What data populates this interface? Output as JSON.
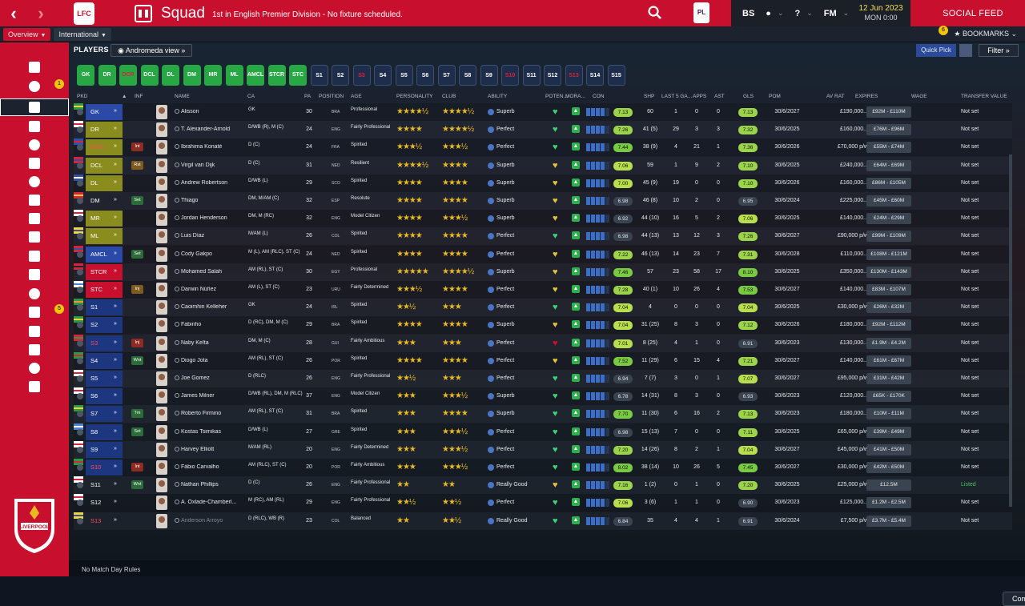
{
  "topbar": {
    "title": "Squad",
    "subtitle": "1st in English Premier Division - No fixture scheduled.",
    "date_line1": "12 Jun 2023",
    "date_line2": "MON 0:00",
    "social_feed": "SOCIAL FEED",
    "icons": [
      "back-icon",
      "forward-icon",
      "search-icon",
      "premier-league-logo",
      "bs-icon",
      "globe-icon",
      "help-icon",
      "fm-icon"
    ],
    "bs_label": "BS",
    "fm_label": "FM"
  },
  "subbar": {
    "tabs": [
      {
        "label": "Overview",
        "active": true
      },
      {
        "label": "International",
        "active": false
      }
    ],
    "bookmarks": "BOOKMARKS",
    "bookmarks_count": "6"
  },
  "sidebar": {
    "badges": {
      "messages": "1",
      "scouting": "5"
    }
  },
  "main": {
    "section_title": "PLAYERS",
    "view": "Andromeda view",
    "quick_pick": "Quick Pick",
    "filter": "Filter"
  },
  "shirts": [
    {
      "label": "GK",
      "type": "starter"
    },
    {
      "label": "DR",
      "type": "starter"
    },
    {
      "label": "DCR",
      "type": "starter",
      "red": true
    },
    {
      "label": "DCL",
      "type": "starter"
    },
    {
      "label": "DL",
      "type": "starter"
    },
    {
      "label": "DM",
      "type": "starter"
    },
    {
      "label": "MR",
      "type": "starter"
    },
    {
      "label": "ML",
      "type": "starter"
    },
    {
      "label": "AMCL",
      "type": "starter"
    },
    {
      "label": "STCR",
      "type": "starter"
    },
    {
      "label": "STC",
      "type": "starter"
    },
    {
      "label": "S1",
      "type": "sub"
    },
    {
      "label": "S2",
      "type": "sub"
    },
    {
      "label": "S3",
      "type": "sub",
      "red": true
    },
    {
      "label": "S4",
      "type": "sub"
    },
    {
      "label": "S5",
      "type": "sub"
    },
    {
      "label": "S6",
      "type": "sub"
    },
    {
      "label": "S7",
      "type": "sub"
    },
    {
      "label": "S8",
      "type": "sub"
    },
    {
      "label": "S9",
      "type": "sub"
    },
    {
      "label": "S10",
      "type": "sub",
      "red": true
    },
    {
      "label": "S11",
      "type": "sub"
    },
    {
      "label": "S12",
      "type": "sub"
    },
    {
      "label": "S13",
      "type": "sub",
      "red": true
    },
    {
      "label": "S14",
      "type": "sub"
    },
    {
      "label": "S15",
      "type": "sub"
    }
  ],
  "columns": {
    "pkd": "PKD",
    "inf": "INF",
    "name": "NAME",
    "ca": "CA",
    "pa": "PA",
    "position": "POSITION",
    "age": "AGE",
    "personality": "PERSONALITY",
    "club": "CLUB",
    "ability": "ABILITY",
    "potential": "POTEN...",
    "morale": "MORA...",
    "con": "CON",
    "shp": "SHP",
    "last5": "LAST 5 GA...",
    "apps": "APPS",
    "ast": "AST",
    "gls": "GLS",
    "pom": "POM",
    "avrat": "AV RAT",
    "expires": "EXPIRES",
    "wage": "WAGE",
    "transfer_value": "TRANSFER VALUE"
  },
  "rows": [
    {
      "pos": "GK",
      "posbg": "#2b4aa8",
      "inf": "",
      "name": "Alisson",
      "pos_text": "GK",
      "age": "30",
      "nat": "BRA",
      "flag": "bra",
      "pers": "Professional",
      "s1": "★★★★½",
      "s2": "★★★★½",
      "ability": "Superb",
      "heart": "#3fd17a",
      "con": [
        1,
        1,
        1,
        1,
        0
      ],
      "cab": "7.13",
      "ship": "60",
      "lga": "1",
      "apps": "0",
      "gls": "0",
      "ast": "7.13",
      "exp": "30/6/2027",
      "wage": "£190,000...",
      "val": "£92M - £110M",
      "tv": "Not set"
    },
    {
      "pos": "DR",
      "posbg": "#8b8c1e",
      "inf": "",
      "name": "T. Alexander-Arnold",
      "pos_text": "D/WB (R), M (C)",
      "age": "24",
      "nat": "ENG",
      "flag": "eng",
      "pers": "Fairly Professional",
      "s1": "★★★★",
      "s2": "★★★★½",
      "ability": "Perfect",
      "heart": "#3fd17a",
      "con": [
        1,
        1,
        1,
        1,
        0
      ],
      "cab": "7.26",
      "ship": "41 (5)",
      "lga": "29",
      "apps": "3",
      "gls": "3",
      "ast": "7.32",
      "exp": "30/6/2025",
      "wage": "£160,000...",
      "val": "£76M - £96M",
      "tv": "Not set"
    },
    {
      "pos": "DCR",
      "posbg": "#8b8c1e",
      "posred": true,
      "inf": "Int",
      "infbg": "#8e2b22",
      "name": "Ibrahima Konaté",
      "pos_text": "D (C)",
      "age": "24",
      "nat": "FRA",
      "flag": "fra",
      "pers": "Spirited",
      "s1": "★★★½",
      "s2": "★★★½",
      "ability": "Perfect",
      "heart": "#3fd17a",
      "con": [
        1,
        1,
        1,
        1,
        0
      ],
      "cab": "7.44",
      "ship": "38 (9)",
      "lga": "4",
      "apps": "21",
      "gls": "1",
      "ast": "7.36",
      "exp": "30/6/2026",
      "wage": "£70,000 p/w",
      "val": "£55M - £74M",
      "tv": "Not set"
    },
    {
      "pos": "DCL",
      "posbg": "#8b8c1e",
      "inf": "Rst",
      "infbg": "#7e5a1e",
      "name": "Virgil van Dijk",
      "pos_text": "D (C)",
      "age": "31",
      "nat": "NED",
      "flag": "ned",
      "pers": "Resilient",
      "s1": "★★★★½",
      "s2": "★★★★",
      "ability": "Superb",
      "heart": "#e3c33d",
      "con": [
        1,
        1,
        1,
        1,
        0
      ],
      "cab": "7.06",
      "ship": "59",
      "lga": "1",
      "apps": "9",
      "gls": "2",
      "ast": "7.10",
      "exp": "30/6/2025",
      "wage": "£240,000...",
      "val": "£64M - £69M",
      "tv": "Not set"
    },
    {
      "pos": "DL",
      "posbg": "#8b8c1e",
      "inf": "",
      "name": "Andrew Robertson",
      "pos_text": "D/WB (L)",
      "age": "29",
      "nat": "SCO",
      "flag": "sco",
      "pers": "Spirited",
      "s1": "★★★★",
      "s2": "★★★★",
      "ability": "Superb",
      "heart": "#e3c33d",
      "con": [
        1,
        1,
        1,
        1,
        0
      ],
      "cab": "7.00",
      "ship": "45 (9)",
      "lga": "19",
      "apps": "0",
      "gls": "0",
      "ast": "7.10",
      "exp": "30/6/2026",
      "wage": "£160,000...",
      "val": "£86M - £105M",
      "tv": "Not set"
    },
    {
      "pos": "DM",
      "posbg": "transparent",
      "inf": "Set",
      "infbg": "#2c6b3a",
      "name": "Thiago",
      "pos_text": "DM, M/AM (C)",
      "age": "32",
      "nat": "ESP",
      "flag": "esp",
      "pers": "Resolute",
      "s1": "★★★★",
      "s2": "★★★★",
      "ability": "Superb",
      "heart": "#e3c33d",
      "con": [
        1,
        1,
        1,
        1,
        0
      ],
      "cab": "6.98",
      "cabgrey": true,
      "ship": "46 (8)",
      "lga": "10",
      "apps": "2",
      "gls": "0",
      "ast": "6.95",
      "astgrey": true,
      "exp": "30/6/2024",
      "wage": "£225,000...",
      "val": "£45M - £60M",
      "tv": "Not set"
    },
    {
      "pos": "MR",
      "posbg": "#8b8c1e",
      "inf": "",
      "name": "Jordan Henderson",
      "pos_text": "DM, M (RC)",
      "age": "32",
      "nat": "ENG",
      "flag": "eng",
      "pers": "Model Citizen",
      "s1": "★★★★",
      "s2": "★★★½",
      "ability": "Superb",
      "heart": "#e3c33d",
      "con": [
        1,
        1,
        1,
        1,
        0
      ],
      "cab": "6.92",
      "cabgrey": true,
      "ship": "44 (10)",
      "lga": "16",
      "apps": "5",
      "gls": "2",
      "ast": "7.06",
      "exp": "30/6/2025",
      "wage": "£140,000...",
      "val": "£24M - £29M",
      "tv": "Not set"
    },
    {
      "pos": "ML",
      "posbg": "#8b8c1e",
      "inf": "",
      "name": "Luis Díaz",
      "pos_text": "M/AM (L)",
      "age": "26",
      "nat": "COL",
      "flag": "col",
      "pers": "Spirited",
      "s1": "★★★★",
      "s2": "★★★★",
      "ability": "Perfect",
      "heart": "#3fd17a",
      "con": [
        1,
        1,
        1,
        1,
        0
      ],
      "cab": "6.98",
      "cabgrey": true,
      "ship": "44 (13)",
      "lga": "13",
      "apps": "12",
      "gls": "3",
      "ast": "7.26",
      "exp": "30/6/2027",
      "wage": "£90,000 p/w",
      "val": "£99M - £109M",
      "tv": "Not set"
    },
    {
      "pos": "AMCL",
      "posbg": "#2b4aa8",
      "inf": "Set",
      "infbg": "#2c6b3a",
      "name": "Cody Gakpo",
      "pos_text": "M (L), AM (RLC), ST (C)",
      "age": "24",
      "nat": "NED",
      "flag": "ned",
      "pers": "Spirited",
      "s1": "★★★★",
      "s2": "★★★★",
      "ability": "Perfect",
      "heart": "#e3c33d",
      "con": [
        1,
        1,
        1,
        1,
        0
      ],
      "cab": "7.22",
      "ship": "46 (13)",
      "lga": "14",
      "apps": "23",
      "gls": "7",
      "ast": "7.31",
      "exp": "30/6/2028",
      "wage": "£110,000...",
      "val": "£108M - £121M",
      "tv": "Not set"
    },
    {
      "pos": "STCR",
      "posbg": "#c8102e",
      "inf": "",
      "name": "Mohamed Salah",
      "pos_text": "AM (RL), ST (C)",
      "age": "30",
      "nat": "EGY",
      "flag": "egy",
      "pers": "Professional",
      "s1": "★★★★★",
      "s2": "★★★★½",
      "ability": "Superb",
      "heart": "#e3c33d",
      "con": [
        1,
        1,
        1,
        1,
        0
      ],
      "cab": "7.46",
      "ship": "57",
      "lga": "23",
      "apps": "58",
      "gls": "17",
      "ast": "8.10",
      "exp": "30/6/2025",
      "wage": "£350,000...",
      "val": "£130M - £143M",
      "tv": "Not set"
    },
    {
      "pos": "STC",
      "posbg": "#c8102e",
      "inf": "Inj",
      "infbg": "#7e5a1e",
      "name": "Darwin Núñez",
      "pos_text": "AM (L), ST (C)",
      "age": "23",
      "nat": "URU",
      "flag": "uru",
      "pers": "Fairly Determined",
      "s1": "★★★½",
      "s2": "★★★★",
      "ability": "Perfect",
      "heart": "#e3c33d",
      "con": [
        1,
        1,
        1,
        1,
        0
      ],
      "cab": "7.28",
      "ship": "40 (1)",
      "lga": "10",
      "apps": "26",
      "gls": "4",
      "ast": "7.53",
      "exp": "30/6/2027",
      "wage": "£140,000...",
      "val": "£83M - £107M",
      "tv": "Not set"
    },
    {
      "pos": "S1",
      "posbg": "#1d3680",
      "inf": "",
      "name": "Caoimhin Kelleher",
      "pos_text": "GK",
      "age": "24",
      "nat": "IRL",
      "flag": "irl",
      "pers": "Spirited",
      "s1": "★★½",
      "s2": "★★★",
      "ability": "Perfect",
      "heart": "#3fd17a",
      "con": [
        1,
        1,
        1,
        1,
        0
      ],
      "cab": "7.04",
      "ship": "4",
      "lga": "0",
      "apps": "0",
      "gls": "0",
      "ast": "7.04",
      "exp": "30/6/2025",
      "wage": "£30,000 p/w",
      "val": "£26M - £32M",
      "tv": "Not set"
    },
    {
      "pos": "S2",
      "posbg": "#1d3680",
      "inf": "",
      "name": "Fabinho",
      "pos_text": "D (RC), DM, M (C)",
      "age": "29",
      "nat": "BRA",
      "flag": "bra",
      "pers": "Spirited",
      "s1": "★★★★",
      "s2": "★★★★",
      "ability": "Superb",
      "heart": "#e3c33d",
      "con": [
        1,
        1,
        1,
        1,
        0
      ],
      "cab": "7.04",
      "ship": "31 (25)",
      "lga": "8",
      "apps": "3",
      "gls": "0",
      "ast": "7.12",
      "exp": "30/6/2026",
      "wage": "£180,000...",
      "val": "£92M - £112M",
      "tv": "Not set"
    },
    {
      "pos": "S3",
      "posbg": "#1d3680",
      "posred": true,
      "inf": "Inj",
      "infbg": "#8e2b22",
      "name": "Naby Keïta",
      "pos_text": "DM, M (C)",
      "age": "28",
      "nat": "GUI",
      "flag": "gui",
      "pers": "Fairly Ambitious",
      "s1": "★★★",
      "s2": "★★★",
      "ability": "Perfect",
      "heart": "#c8102e",
      "con": [
        1,
        1,
        1,
        1,
        0
      ],
      "cab": "7.01",
      "ship": "8 (25)",
      "lga": "4",
      "apps": "1",
      "gls": "0",
      "ast": "6.91",
      "astgrey": true,
      "exp": "30/6/2023",
      "wage": "£130,000...",
      "val": "£1.9M - £4.2M",
      "tv": "Not set"
    },
    {
      "pos": "S4",
      "posbg": "#1d3680",
      "inf": "Wnt",
      "infbg": "#2c6b3a",
      "name": "Diogo Jota",
      "pos_text": "AM (RL), ST (C)",
      "age": "26",
      "nat": "POR",
      "flag": "por",
      "pers": "Spirited",
      "s1": "★★★★",
      "s2": "★★★★",
      "ability": "Perfect",
      "heart": "#e3c33d",
      "con": [
        1,
        1,
        1,
        1,
        0
      ],
      "cab": "7.52",
      "ship": "11 (29)",
      "lga": "6",
      "apps": "15",
      "gls": "4",
      "ast": "7.21",
      "exp": "30/6/2027",
      "wage": "£140,000...",
      "val": "£61M - £67M",
      "tv": "Not set"
    },
    {
      "pos": "S5",
      "posbg": "#1d3680",
      "inf": "",
      "name": "Joe Gomez",
      "pos_text": "D (RLC)",
      "age": "26",
      "nat": "ENG",
      "flag": "eng",
      "pers": "Fairly Professional",
      "s1": "★★½",
      "s2": "★★★",
      "ability": "Perfect",
      "heart": "#3fd17a",
      "con": [
        1,
        1,
        1,
        1,
        0
      ],
      "cab": "6.94",
      "cabgrey": true,
      "ship": "7 (7)",
      "lga": "3",
      "apps": "0",
      "gls": "1",
      "ast": "7.07",
      "exp": "30/6/2027",
      "wage": "£95,000 p/w",
      "val": "£31M - £42M",
      "tv": "Not set"
    },
    {
      "pos": "S6",
      "posbg": "#1d3680",
      "inf": "",
      "name": "James Milner",
      "pos_text": "D/WB (RL), DM, M (RLC)",
      "age": "37",
      "nat": "ENG",
      "flag": "eng",
      "pers": "Model Citizen",
      "s1": "★★★",
      "s2": "★★★½",
      "ability": "Superb",
      "heart": "#3fd17a",
      "con": [
        1,
        1,
        1,
        1,
        0
      ],
      "cab": "6.78",
      "cabgrey": true,
      "ship": "14 (31)",
      "lga": "8",
      "apps": "3",
      "gls": "0",
      "ast": "6.93",
      "astgrey": true,
      "exp": "30/6/2023",
      "wage": "£120,000...",
      "val": "£65K - £170K",
      "tv": "Not set"
    },
    {
      "pos": "S7",
      "posbg": "#1d3680",
      "inf": "Tm",
      "infbg": "#2c6b3a",
      "name": "Roberto Firmino",
      "pos_text": "AM (RL), ST (C)",
      "age": "31",
      "nat": "BRA",
      "flag": "bra",
      "pers": "Spirited",
      "s1": "★★★",
      "s2": "★★★★",
      "ability": "Superb",
      "heart": "#3fd17a",
      "con": [
        1,
        1,
        1,
        1,
        0
      ],
      "cab": "7.70",
      "ship": "11 (30)",
      "lga": "6",
      "apps": "16",
      "gls": "2",
      "ast": "7.13",
      "exp": "30/6/2023",
      "wage": "£180,000...",
      "val": "£10M - £11M",
      "tv": "Not set"
    },
    {
      "pos": "S8",
      "posbg": "#1d3680",
      "inf": "Set",
      "infbg": "#2c6b3a",
      "name": "Kostas Tsimikas",
      "pos_text": "D/WB (L)",
      "age": "27",
      "nat": "GRE",
      "flag": "gre",
      "pers": "Spirited",
      "s1": "★★★",
      "s2": "★★★½",
      "ability": "Perfect",
      "heart": "#3fd17a",
      "con": [
        1,
        1,
        1,
        1,
        0
      ],
      "cab": "6.98",
      "cabgrey": true,
      "ship": "15 (13)",
      "lga": "7",
      "apps": "0",
      "gls": "0",
      "ast": "7.11",
      "exp": "30/6/2025",
      "wage": "£65,000 p/w",
      "val": "£39M - £49M",
      "tv": "Not set"
    },
    {
      "pos": "S9",
      "posbg": "#1d3680",
      "inf": "",
      "name": "Harvey Elliott",
      "pos_text": "M/AM (RL)",
      "age": "20",
      "nat": "ENG",
      "flag": "eng",
      "pers": "Fairly Determined",
      "s1": "★★★",
      "s2": "★★★½",
      "ability": "Perfect",
      "heart": "#3fd17a",
      "con": [
        1,
        1,
        1,
        1,
        0
      ],
      "cab": "7.20",
      "ship": "14 (26)",
      "lga": "8",
      "apps": "2",
      "gls": "1",
      "ast": "7.04",
      "exp": "30/6/2027",
      "wage": "£45,000 p/w",
      "val": "£41M - £50M",
      "tv": "Not set"
    },
    {
      "pos": "S10",
      "posbg": "#1d3680",
      "posred": true,
      "inf": "Int",
      "infbg": "#8e2b22",
      "name": "Fábio Carvalho",
      "pos_text": "AM (RLC), ST (C)",
      "age": "20",
      "nat": "POR",
      "flag": "por",
      "pers": "Fairly Ambitious",
      "s1": "★★★",
      "s2": "★★★½",
      "ability": "Perfect",
      "heart": "#3fd17a",
      "con": [
        1,
        1,
        1,
        1,
        0
      ],
      "cab": "8.02",
      "ship": "38 (14)",
      "lga": "10",
      "apps": "26",
      "gls": "5",
      "ast": "7.45",
      "exp": "30/6/2027",
      "wage": "£30,000 p/w",
      "val": "£42M - £50M",
      "tv": "Not set"
    },
    {
      "pos": "S11",
      "posbg": "transparent",
      "inf": "Wnt",
      "infbg": "#2c6b3a",
      "name": "Nathan Phillips",
      "pos_text": "D (C)",
      "age": "26",
      "nat": "ENG",
      "flag": "eng",
      "pers": "Fairly Professional",
      "s1": "★★",
      "s2": "★★",
      "ability": "Really Good",
      "heart": "#e3c33d",
      "con": [
        1,
        1,
        1,
        1,
        0
      ],
      "cab": "7.16",
      "ship": "1 (2)",
      "lga": "0",
      "apps": "1",
      "gls": "0",
      "ast": "7.20",
      "exp": "30/6/2025",
      "wage": "£25,000 p/w",
      "val": "£12.5M",
      "tv": "Listed",
      "listed": true
    },
    {
      "pos": "S12",
      "posbg": "transparent",
      "inf": "",
      "name": "A. Oxlade-Chamberl...",
      "pos_text": "M (RC), AM (RL)",
      "age": "29",
      "nat": "ENG",
      "flag": "eng",
      "pers": "Fairly Professional",
      "s1": "★★½",
      "s2": "★★½",
      "ability": "Perfect",
      "heart": "#3fd17a",
      "con": [
        1,
        1,
        1,
        1,
        0
      ],
      "cab": "7.06",
      "ship": "3 (6)",
      "lga": "1",
      "apps": "1",
      "gls": "0",
      "ast": "6.90",
      "astgrey": true,
      "exp": "30/6/2023",
      "wage": "£125,000...",
      "val": "£1.2M - £2.5M",
      "tv": "Not set"
    },
    {
      "pos": "S13",
      "posbg": "transparent",
      "posred": true,
      "inf": "",
      "name": "Anderson Arroyo",
      "namegrey": true,
      "pos_text": "D (RLC), WB (R)",
      "age": "23",
      "nat": "COL",
      "flag": "col",
      "pers": "Balanced",
      "s1": "★★",
      "s2": "★★½",
      "ability": "Really Good",
      "heart": "#3fd17a",
      "con": [
        1,
        1,
        1,
        1,
        0
      ],
      "cab": "6.84",
      "cabgrey": true,
      "ship": "35",
      "lga": "4",
      "apps": "4",
      "gls": "1",
      "ast": "6.91",
      "astgrey": true,
      "exp": "30/6/2024",
      "wage": "£7,500 p/w",
      "val": "£3.7M - £5.4M",
      "tv": "Not set"
    }
  ],
  "footer": {
    "rules": "No Match Day Rules",
    "competitions": "Competitions"
  },
  "club_crest": {
    "text": "LIVERPOOL"
  }
}
